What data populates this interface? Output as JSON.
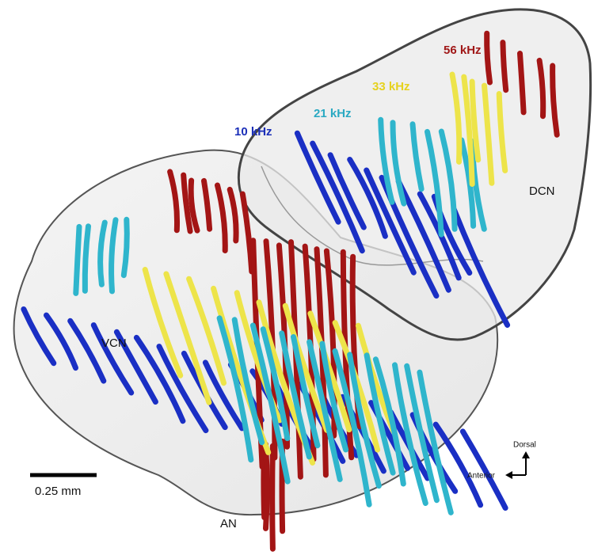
{
  "frequency_labels": [
    "56 kHz",
    "33 kHz",
    "21 kHz",
    "10 kHz"
  ],
  "region_labels": {
    "dcn": "DCN",
    "vcn": "VCN",
    "an": "AN"
  },
  "scale_bar": "0.25 mm",
  "orientation": {
    "dorsal": "Dorsal",
    "anterior": "Anterior"
  }
}
